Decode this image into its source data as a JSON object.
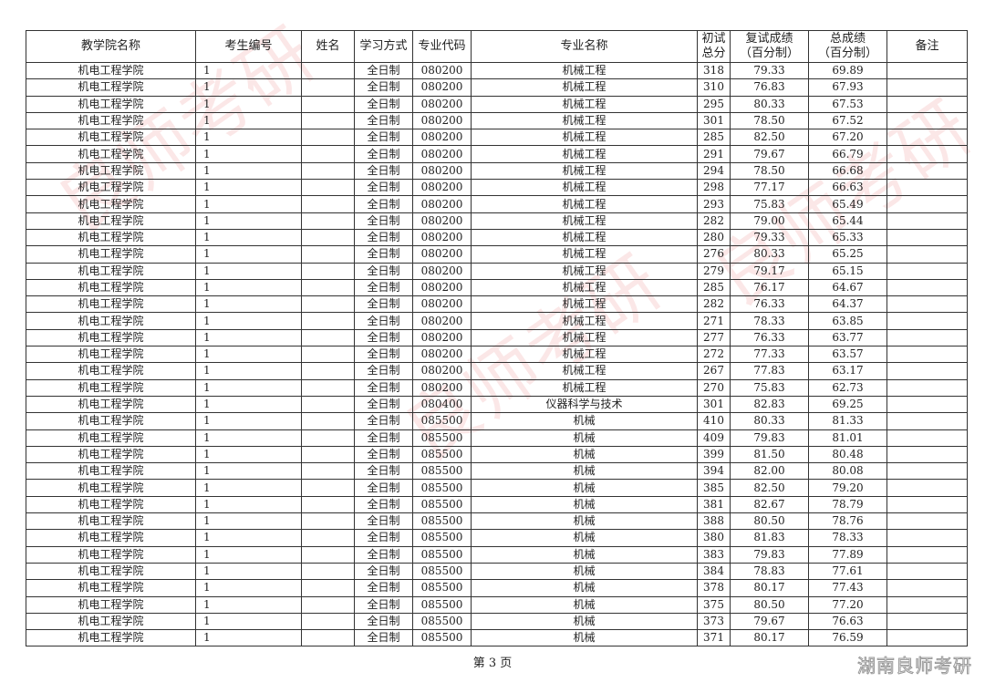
{
  "headers": [
    "教学院名称",
    "考生编号",
    "姓名",
    "学习方式",
    "专业代码",
    "专业名称",
    "初试\n总分",
    "复试成绩\n（百分制）",
    "总成绩\n（百分制）",
    "备注"
  ],
  "rows": [
    [
      "机电工程学院",
      "1",
      "",
      "全日制",
      "080200",
      "机械工程",
      "318",
      "79.33",
      "69.89",
      ""
    ],
    [
      "机电工程学院",
      "1",
      "",
      "全日制",
      "080200",
      "机械工程",
      "310",
      "76.83",
      "67.93",
      ""
    ],
    [
      "机电工程学院",
      "1",
      "",
      "全日制",
      "080200",
      "机械工程",
      "295",
      "80.33",
      "67.53",
      ""
    ],
    [
      "机电工程学院",
      "1",
      "",
      "全日制",
      "080200",
      "机械工程",
      "301",
      "78.50",
      "67.52",
      ""
    ],
    [
      "机电工程学院",
      "1",
      "",
      "全日制",
      "080200",
      "机械工程",
      "285",
      "82.50",
      "67.20",
      ""
    ],
    [
      "机电工程学院",
      "1",
      "",
      "全日制",
      "080200",
      "机械工程",
      "291",
      "79.67",
      "66.79",
      ""
    ],
    [
      "机电工程学院",
      "1",
      "",
      "全日制",
      "080200",
      "机械工程",
      "294",
      "78.50",
      "66.68",
      ""
    ],
    [
      "机电工程学院",
      "1",
      "",
      "全日制",
      "080200",
      "机械工程",
      "298",
      "77.17",
      "66.63",
      ""
    ],
    [
      "机电工程学院",
      "1",
      "",
      "全日制",
      "080200",
      "机械工程",
      "293",
      "75.83",
      "65.49",
      ""
    ],
    [
      "机电工程学院",
      "1",
      "",
      "全日制",
      "080200",
      "机械工程",
      "282",
      "79.00",
      "65.44",
      ""
    ],
    [
      "机电工程学院",
      "1",
      "",
      "全日制",
      "080200",
      "机械工程",
      "280",
      "79.33",
      "65.33",
      ""
    ],
    [
      "机电工程学院",
      "1",
      "",
      "全日制",
      "080200",
      "机械工程",
      "276",
      "80.33",
      "65.25",
      ""
    ],
    [
      "机电工程学院",
      "1",
      "",
      "全日制",
      "080200",
      "机械工程",
      "279",
      "79.17",
      "65.15",
      ""
    ],
    [
      "机电工程学院",
      "1",
      "",
      "全日制",
      "080200",
      "机械工程",
      "285",
      "76.17",
      "64.67",
      ""
    ],
    [
      "机电工程学院",
      "1",
      "",
      "全日制",
      "080200",
      "机械工程",
      "282",
      "76.33",
      "64.37",
      ""
    ],
    [
      "机电工程学院",
      "1",
      "",
      "全日制",
      "080200",
      "机械工程",
      "271",
      "78.33",
      "63.85",
      ""
    ],
    [
      "机电工程学院",
      "1",
      "",
      "全日制",
      "080200",
      "机械工程",
      "277",
      "76.33",
      "63.77",
      ""
    ],
    [
      "机电工程学院",
      "1",
      "",
      "全日制",
      "080200",
      "机械工程",
      "272",
      "77.33",
      "63.57",
      ""
    ],
    [
      "机电工程学院",
      "1",
      "",
      "全日制",
      "080200",
      "机械工程",
      "267",
      "77.83",
      "63.17",
      ""
    ],
    [
      "机电工程学院",
      "1",
      "",
      "全日制",
      "080200",
      "机械工程",
      "270",
      "75.83",
      "62.73",
      ""
    ],
    [
      "机电工程学院",
      "1",
      "",
      "全日制",
      "080400",
      "仪器科学与技术",
      "301",
      "82.83",
      "69.25",
      ""
    ],
    [
      "机电工程学院",
      "1",
      "",
      "全日制",
      "085500",
      "机械",
      "410",
      "80.33",
      "81.33",
      ""
    ],
    [
      "机电工程学院",
      "1",
      "",
      "全日制",
      "085500",
      "机械",
      "409",
      "79.83",
      "81.01",
      ""
    ],
    [
      "机电工程学院",
      "1",
      "",
      "全日制",
      "085500",
      "机械",
      "399",
      "81.50",
      "80.48",
      ""
    ],
    [
      "机电工程学院",
      "1",
      "",
      "全日制",
      "085500",
      "机械",
      "394",
      "82.00",
      "80.08",
      ""
    ],
    [
      "机电工程学院",
      "1",
      "",
      "全日制",
      "085500",
      "机械",
      "385",
      "82.50",
      "79.20",
      ""
    ],
    [
      "机电工程学院",
      "1",
      "",
      "全日制",
      "085500",
      "机械",
      "381",
      "82.67",
      "78.79",
      ""
    ],
    [
      "机电工程学院",
      "1",
      "",
      "全日制",
      "085500",
      "机械",
      "388",
      "80.50",
      "78.76",
      ""
    ],
    [
      "机电工程学院",
      "1",
      "",
      "全日制",
      "085500",
      "机械",
      "380",
      "81.83",
      "78.33",
      ""
    ],
    [
      "机电工程学院",
      "1",
      "",
      "全日制",
      "085500",
      "机械",
      "383",
      "79.83",
      "77.89",
      ""
    ],
    [
      "机电工程学院",
      "1",
      "",
      "全日制",
      "085500",
      "机械",
      "384",
      "78.83",
      "77.61",
      ""
    ],
    [
      "机电工程学院",
      "1",
      "",
      "全日制",
      "085500",
      "机械",
      "378",
      "80.17",
      "77.43",
      ""
    ],
    [
      "机电工程学院",
      "1",
      "",
      "全日制",
      "085500",
      "机械",
      "375",
      "80.50",
      "77.20",
      ""
    ],
    [
      "机电工程学院",
      "1",
      "",
      "全日制",
      "085500",
      "机械",
      "373",
      "79.67",
      "76.63",
      ""
    ],
    [
      "机电工程学院",
      "1",
      "",
      "全日制",
      "085500",
      "机械",
      "371",
      "80.17",
      "76.59",
      ""
    ]
  ],
  "footer": "第 3 页",
  "watermark": "湖南良师考研",
  "background_watermark": "良师考研"
}
